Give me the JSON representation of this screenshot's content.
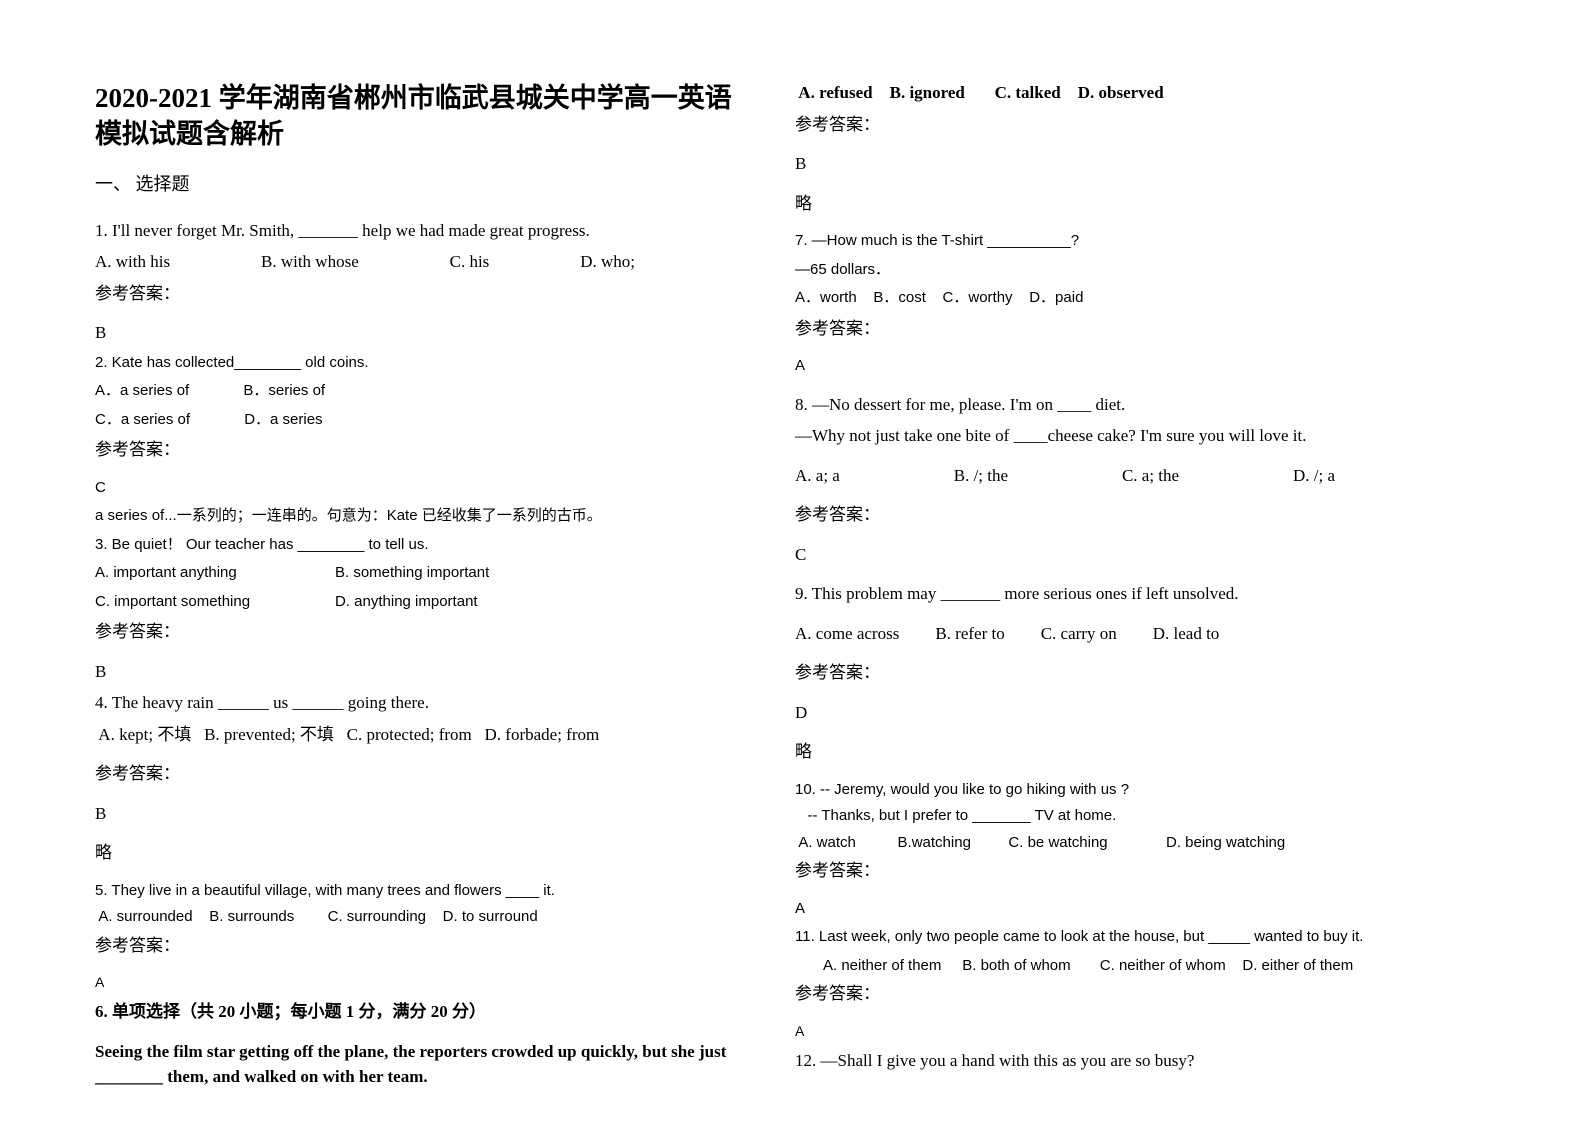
{
  "title": "2020-2021 学年湖南省郴州市临武县城关中学高一英语模拟试题含解析",
  "section1": "一、 选择题",
  "answer_label": "参考答案：",
  "omit": "略",
  "q1": {
    "stem": "1. I'll never forget Mr. Smith, _______ help we had made great progress.",
    "a": "A. with his",
    "b": "B. with whose",
    "c": "C. his",
    "d": "D. who;",
    "ans": "B"
  },
  "q2": {
    "stem": "2. Kate has collected________ old coins.",
    "a": "A．a series of",
    "b": "B．series of",
    "c": "C．a series of",
    "d": "D．a series",
    "ans": "C",
    "exp": "a series of...一系列的；一连串的。句意为：Kate 已经收集了一系列的古币。"
  },
  "q3": {
    "stem": "3. Be quiet！ Our teacher has ________ to tell us.",
    "a": "A. important anything",
    "b": "B. something important",
    "c": "C. important something",
    "d": "D. anything important",
    "ans": "B"
  },
  "q4": {
    "stem": "4. The heavy rain ______ us ______ going there.",
    "opts": " A. kept; 不填   B. prevented; 不填   C. protected; from   D. forbade; from",
    "ans": "B"
  },
  "q5": {
    "stem": "5. They live in a beautiful village, with many trees and flowers ____ it.",
    "opts": " A. surrounded    B. surrounds        C. surrounding    D. to surround",
    "ans": "A"
  },
  "q6": {
    "hdr": "6. 单项选择（共 20 小题；每小题 1 分，满分 20 分）",
    "stem": " Seeing the film star getting off the plane, the reporters crowded up quickly, but she just ________ them, and walked on with her team.",
    "opts": " A. refused    B. ignored       C. talked    D. observed",
    "ans": "B"
  },
  "q7": {
    "l1": "7. —How much is the T-shirt __________?",
    "l2": "—65 dollars．",
    "opts": "A．worth    B．cost    C．worthy    D．paid",
    "ans": "A"
  },
  "q8": {
    "l1": "8. —No dessert for me, please. I'm on ____ diet.",
    "l2": "—Why not just take one bite of ____cheese cake? I'm sure you will love it.",
    "a": "A. a; a",
    "b": "B. /; the",
    "c": "C. a; the",
    "d": "D. /; a",
    "ans": "C"
  },
  "q9": {
    "stem": "9. This problem may _______ more serious ones if left unsolved.",
    "a": "A. come across",
    "b": "B. refer to",
    "c": "C. carry on",
    "d": "D. lead to",
    "ans": "D"
  },
  "q10": {
    "l1": "10. -- Jeremy, would you like to go hiking with us ?",
    "l2": "   -- Thanks, but I prefer to _______ TV at home.",
    "opts": " A. watch          B.watching         C. be watching              D. being watching",
    "ans": "A"
  },
  "q11": {
    "stem": "11. Last week, only two people came to look at the house, but _____ wanted to buy it.",
    "opts": "A. neither of them     B. both of whom       C. neither of whom    D. either of them",
    "ans": "A"
  },
  "q12": {
    "stem": "12. —Shall I give you a hand with this as you are so busy?"
  }
}
